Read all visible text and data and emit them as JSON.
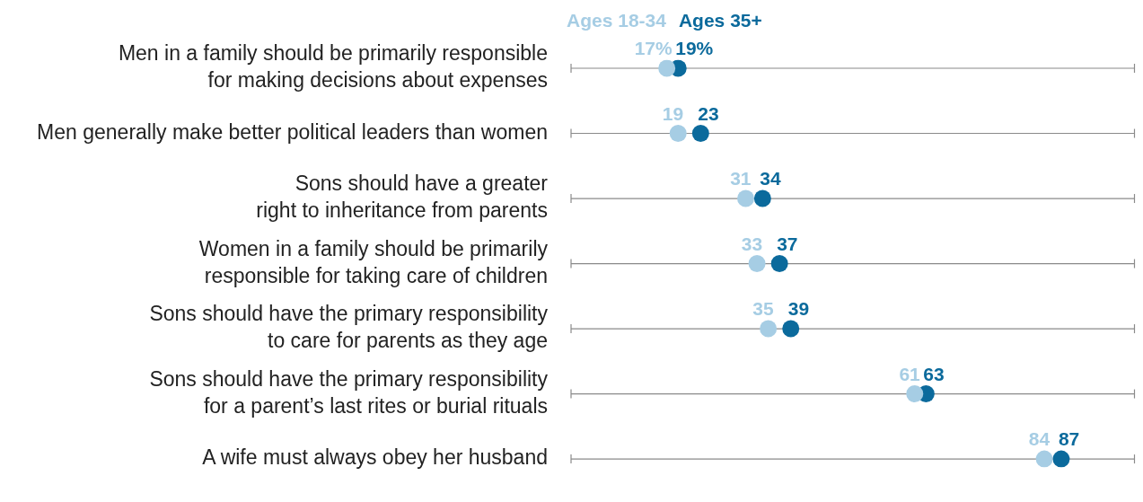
{
  "chart_data": {
    "type": "scatter",
    "orientation": "horizontal",
    "categories": [
      "Men in a family should be primarily responsible for making decisions about expenses",
      "Men generally make better political leaders than women",
      "Sons should have a greater right to inheritance from parents",
      "Women in a family should be primarily responsible for taking care of children",
      "Sons should have the primary responsibility to care for parents as they age",
      "Sons should have the primary responsibility for a parent’s last rites or burial rituals",
      "A wife must always obey her husband"
    ],
    "series": [
      {
        "name": "Ages 18-34",
        "color": "#a6cde4",
        "values": [
          17,
          19,
          31,
          33,
          35,
          61,
          84
        ],
        "value_labels": [
          "17%",
          "19",
          "31",
          "33",
          "35",
          "61",
          "84"
        ]
      },
      {
        "name": "Ages 35+",
        "color": "#0b6a9c",
        "values": [
          19,
          23,
          34,
          37,
          39,
          63,
          87
        ],
        "value_labels": [
          "19%",
          "23",
          "34",
          "37",
          "39",
          "63",
          "87"
        ]
      }
    ],
    "xlim": [
      0,
      100
    ],
    "tick_labels": "y",
    "grid": "y",
    "legend": "top",
    "marker": "circle"
  }
}
